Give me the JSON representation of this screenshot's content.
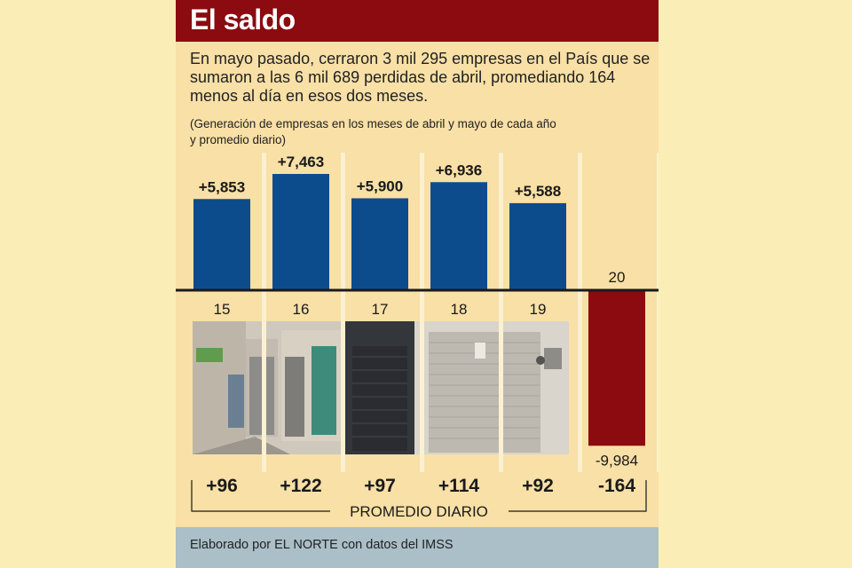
{
  "header": {
    "title": "El saldo"
  },
  "summary": "En mayo pasado, cerraron 3 mil 295 empresas en el País que se sumaron a las 6 mil 689 perdidas de abril, promediando 164 menos al día en esos dos meses.",
  "subtitle": "(Generación de empresas en los meses de abril y mayo de cada año y promedio diario)",
  "footer": {
    "source": "Elaborado por EL NORTE con datos del IMSS"
  },
  "colors": {
    "positive": "#0d4c8c",
    "negative": "#8b0b10",
    "header": "#8b0b10",
    "panel": "#f8e0a6",
    "footer": "#aabfc7"
  },
  "chart_data": {
    "type": "bar",
    "categories": [
      "15",
      "16",
      "17",
      "18",
      "19",
      "20"
    ],
    "values": [
      5853,
      7463,
      5900,
      6936,
      5588,
      -9984
    ],
    "value_labels": [
      "+5,853",
      "+7,463",
      "+5,900",
      "+6,936",
      "+5,588",
      "-9,984"
    ],
    "daily_average": [
      "+96",
      "+122",
      "+97",
      "+114",
      "+92",
      "-164"
    ],
    "daily_average_label": "PROMEDIO DIARIO",
    "ylim": [
      -10500,
      7463
    ]
  }
}
